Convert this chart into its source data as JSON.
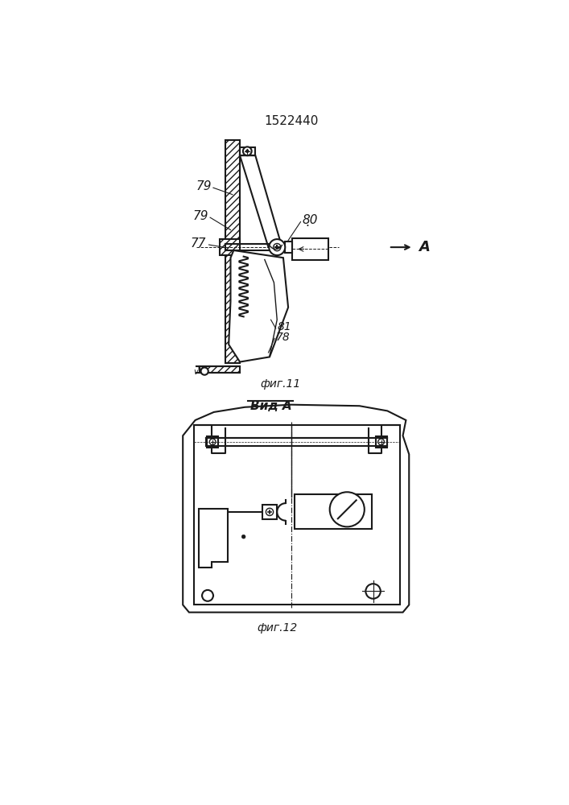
{
  "title": "1522440",
  "title_fontsize": 11,
  "fig11_label": "фиг.11",
  "fig12_label": "фиг.12",
  "vid_a_label": "Вид А",
  "arrow_a_label": "А",
  "label_79a": "79",
  "label_79b": "79",
  "label_77": "77",
  "label_80": "80",
  "label_81": "81",
  "label_78": "78",
  "bg_color": "#ffffff",
  "line_color": "#1a1a1a"
}
